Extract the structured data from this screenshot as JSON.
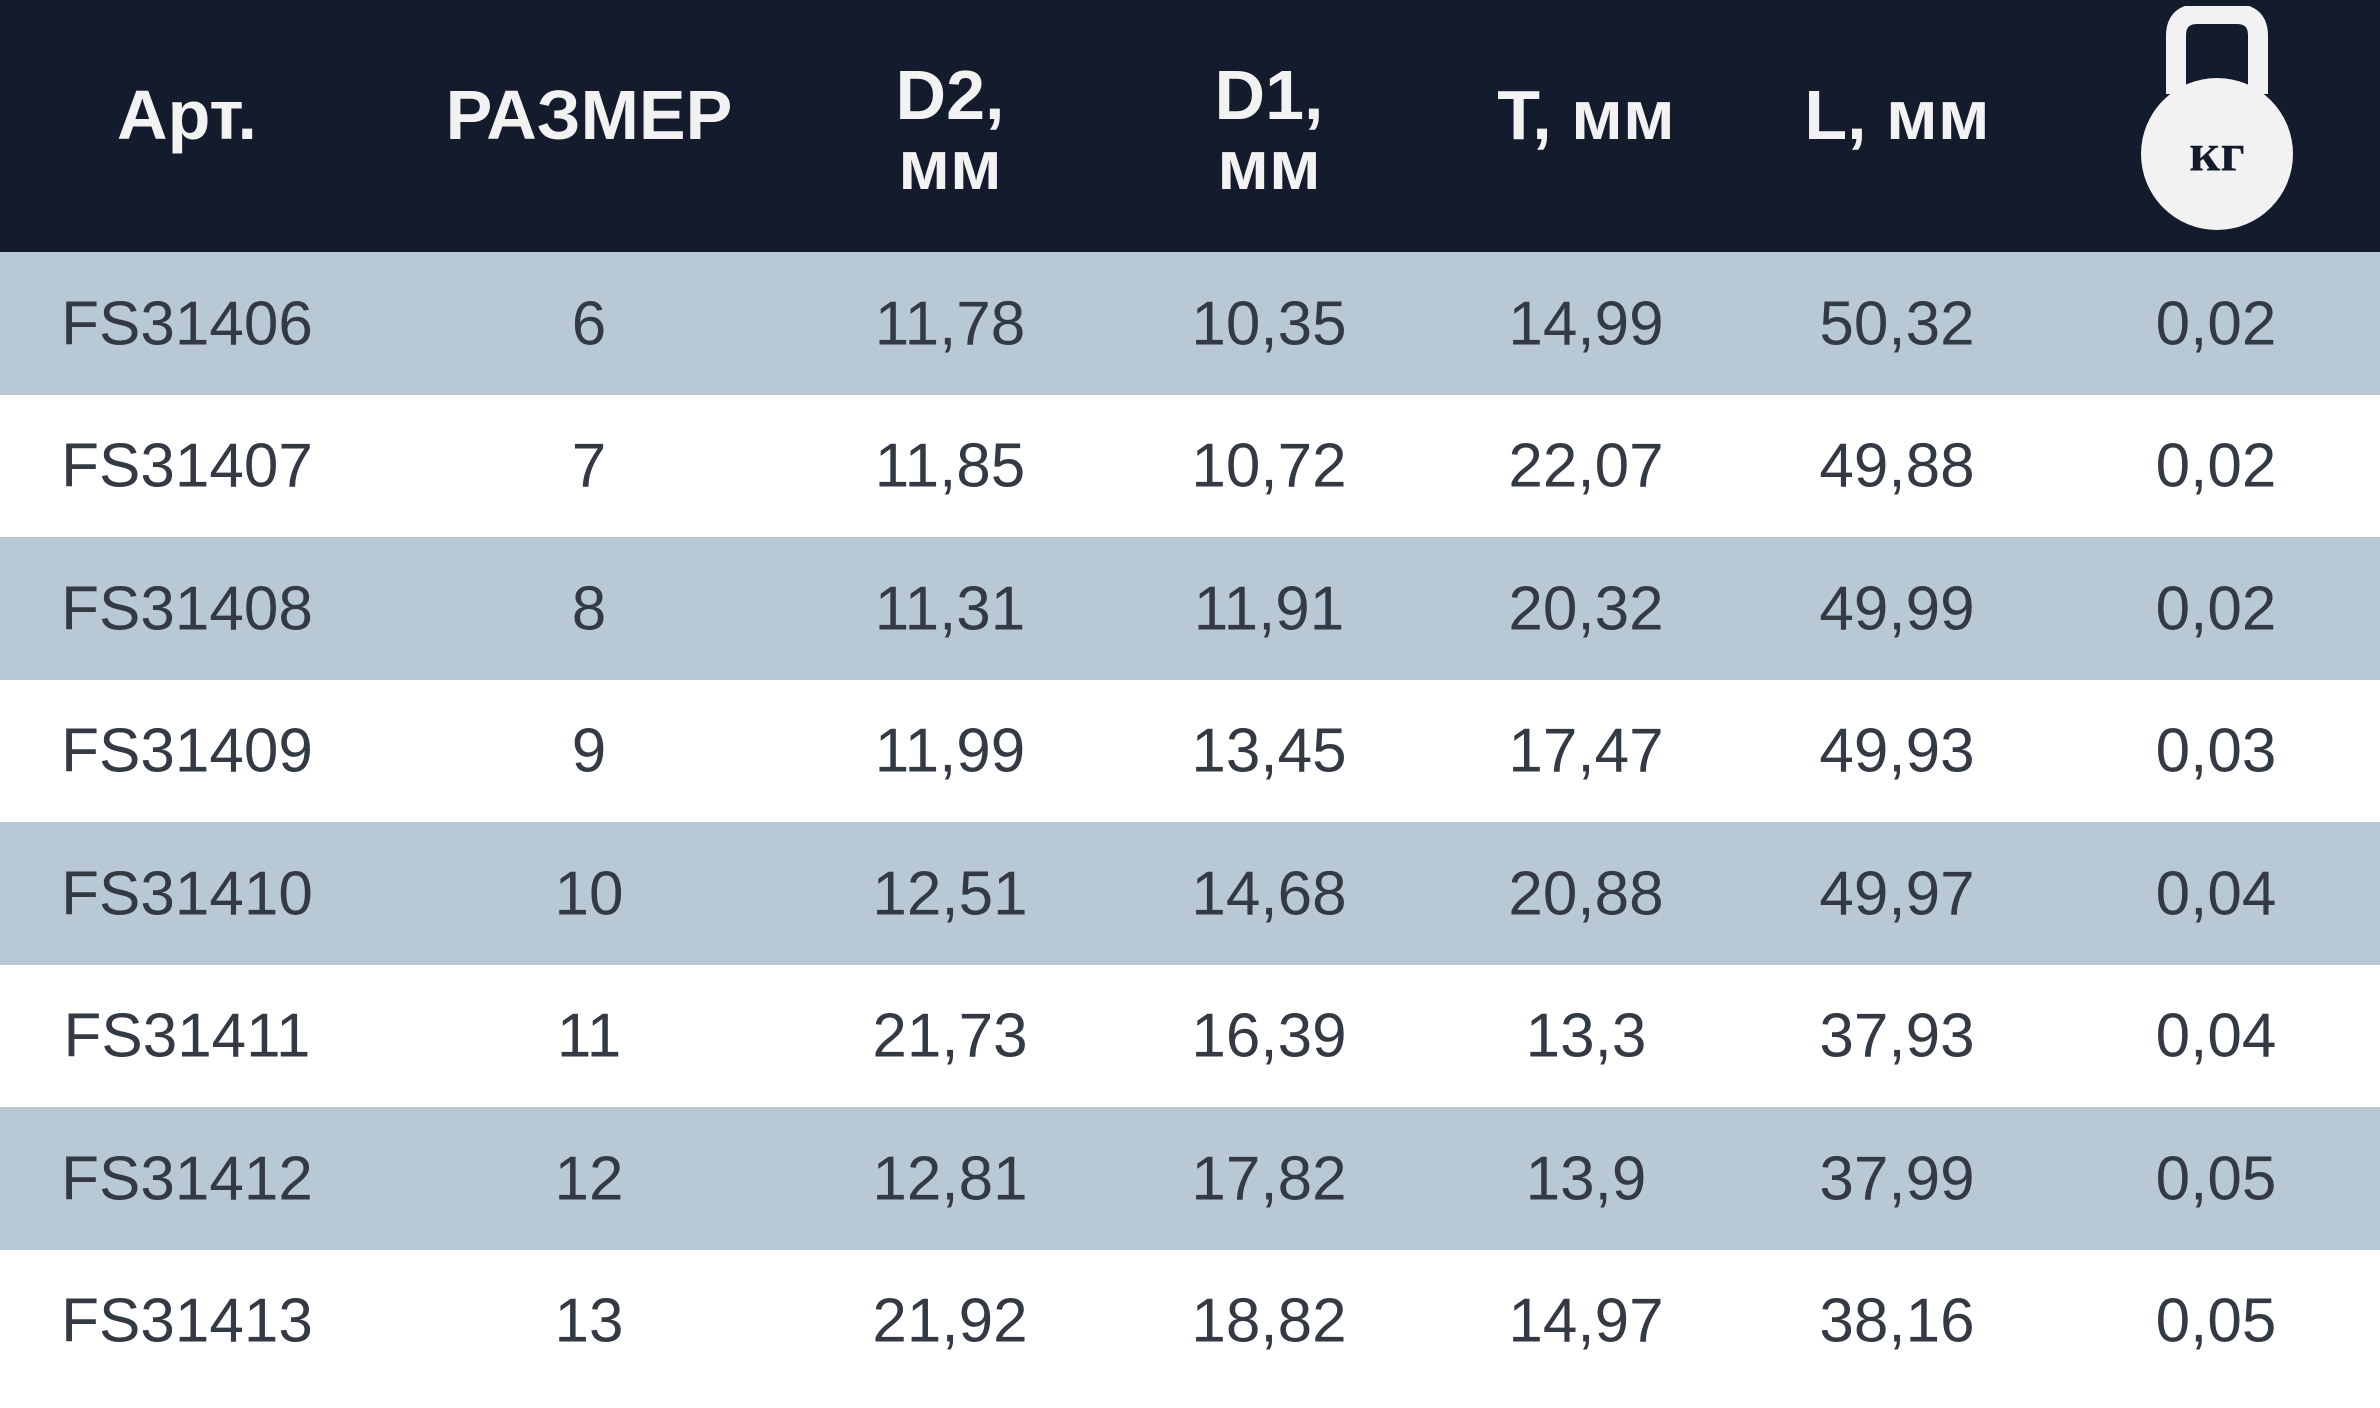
{
  "table": {
    "header": [
      "Арт.",
      "РАЗМЕР",
      "D2,\nмм",
      "D1,\nмм",
      "T, мм",
      "L, мм",
      "кг"
    ],
    "rows": [
      [
        "FS31406",
        "6",
        "11,78",
        "10,35",
        "14,99",
        "50,32",
        "0,02"
      ],
      [
        "FS31407",
        "7",
        "11,85",
        "10,72",
        "22,07",
        "49,88",
        "0,02"
      ],
      [
        "FS31408",
        "8",
        "11,31",
        "11,91",
        "20,32",
        "49,99",
        "0,02"
      ],
      [
        "FS31409",
        "9",
        "11,99",
        "13,45",
        "17,47",
        "49,93",
        "0,03"
      ],
      [
        "FS31410",
        "10",
        "12,51",
        "14,68",
        "20,88",
        "49,97",
        "0,04"
      ],
      [
        "FS31411",
        "11",
        "21,73",
        "16,39",
        "13,3",
        "37,93",
        "0,04"
      ],
      [
        "FS31412",
        "12",
        "12,81",
        "17,82",
        "13,9",
        "37,99",
        "0,05"
      ],
      [
        "FS31413",
        "13",
        "21,92",
        "18,82",
        "14,97",
        "38,16",
        "0,05"
      ]
    ]
  }
}
